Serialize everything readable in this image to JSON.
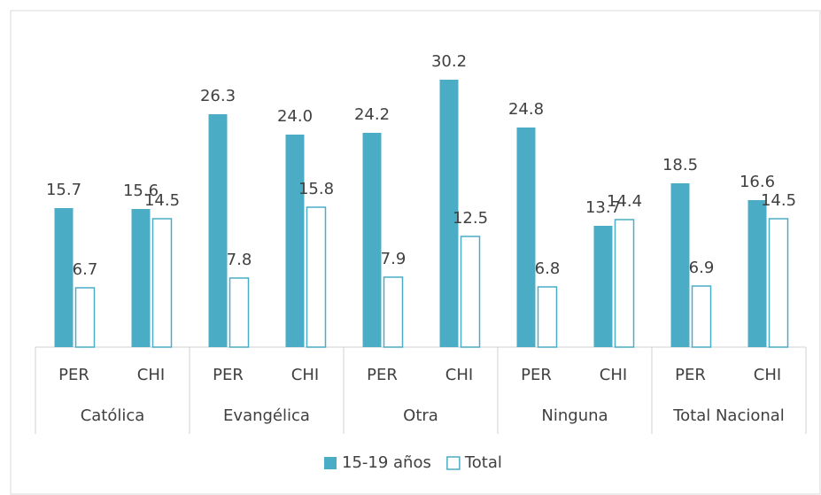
{
  "chart_data": {
    "type": "bar",
    "categories": [
      "PER",
      "CHI",
      "PER",
      "CHI",
      "PER",
      "CHI",
      "PER",
      "CHI",
      "PER",
      "CHI"
    ],
    "groups": [
      "Católica",
      "Evangélica",
      "Otra",
      "Ninguna",
      "Total Nacional"
    ],
    "series": [
      {
        "name": "15-19 años",
        "color": "#4bacc6",
        "filled": true,
        "values": [
          15.7,
          15.6,
          26.3,
          24.0,
          24.2,
          30.2,
          24.8,
          13.7,
          18.5,
          16.6
        ],
        "value_labels": [
          "15.7",
          "15.6",
          "26.3",
          "24.0",
          "24.2",
          "30.2",
          "24.8",
          "13.7",
          "18.5",
          "16.6"
        ]
      },
      {
        "name": "Total",
        "color": "#4bacc6",
        "filled": false,
        "values": [
          6.7,
          14.5,
          7.8,
          15.8,
          7.9,
          12.5,
          6.8,
          14.4,
          6.9,
          14.5
        ]
      }
    ],
    "legend": "bottom"
  }
}
